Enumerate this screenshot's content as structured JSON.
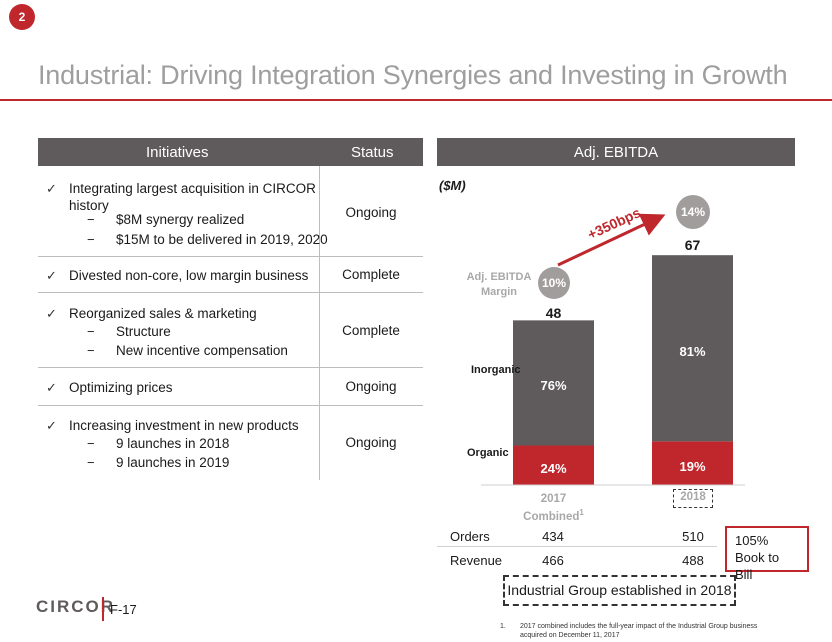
{
  "page_number": "2",
  "title": "Industrial: Driving Integration Synergies and Investing in Growth",
  "table": {
    "header_initiatives": "Initiatives",
    "header_status": "Status",
    "check_glyph": "✓",
    "dash_glyph": "−",
    "rows": [
      {
        "text": "Integrating largest acquisition in CIRCOR",
        "text2": "history",
        "subs": [
          "$8M synergy realized",
          "$15M to be delivered in 2019, 2020"
        ],
        "status": "Ongoing"
      },
      {
        "text": "Divested non-core, low margin business",
        "subs": [],
        "status": "Complete"
      },
      {
        "text": "Reorganized sales & marketing",
        "subs": [
          "Structure",
          "New incentive compensation"
        ],
        "status": "Complete"
      },
      {
        "text": "Optimizing prices",
        "subs": [],
        "status": "Ongoing"
      },
      {
        "text": "Increasing investment in new products",
        "subs": [
          "9 launches in 2018",
          "9 launches in 2019"
        ],
        "status": "Ongoing"
      }
    ]
  },
  "chart_header": "Adj. EBITDA",
  "colors": {
    "accent_red": "#c0272d",
    "dark_gray": "#5f5a5b",
    "header_gray": "#5f5a5b",
    "circle_gray": "#a29d9d"
  },
  "chart_data": {
    "type": "bar",
    "stacked": true,
    "unit_label": "($M)",
    "categories": [
      "2017 Combined",
      "2018"
    ],
    "category_lines": [
      [
        "2017",
        "Combined"
      ],
      [
        "2018"
      ]
    ],
    "footnote_marker": "1",
    "series": [
      {
        "name": "Organic",
        "values_pct": [
          24,
          19
        ],
        "labels": [
          "24%",
          "19%"
        ]
      },
      {
        "name": "Inorganic",
        "values_pct": [
          76,
          81
        ],
        "labels": [
          "76%",
          "81%"
        ]
      }
    ],
    "totals": [
      48,
      67
    ],
    "margins": [
      "10%",
      "14%"
    ],
    "margin_label_line1": "Adj. EBITDA",
    "margin_label_line2": "Margin",
    "margin_change": "+350bps"
  },
  "metrics": {
    "orders_label": "Orders",
    "revenue_label": "Revenue",
    "orders": [
      "434",
      "510"
    ],
    "revenue": [
      "466",
      "488"
    ]
  },
  "book_to_bill": {
    "line1": "105%",
    "line2": "Book to Bill"
  },
  "established_note": "Industrial Group established in 2018",
  "footnote": {
    "num": "1.",
    "line1": "2017 combined includes the full-year impact of the Industrial Group business",
    "line2": "acquired on December 11, 2017"
  },
  "logo_text": "CIRCOR",
  "page_id": "F-17"
}
